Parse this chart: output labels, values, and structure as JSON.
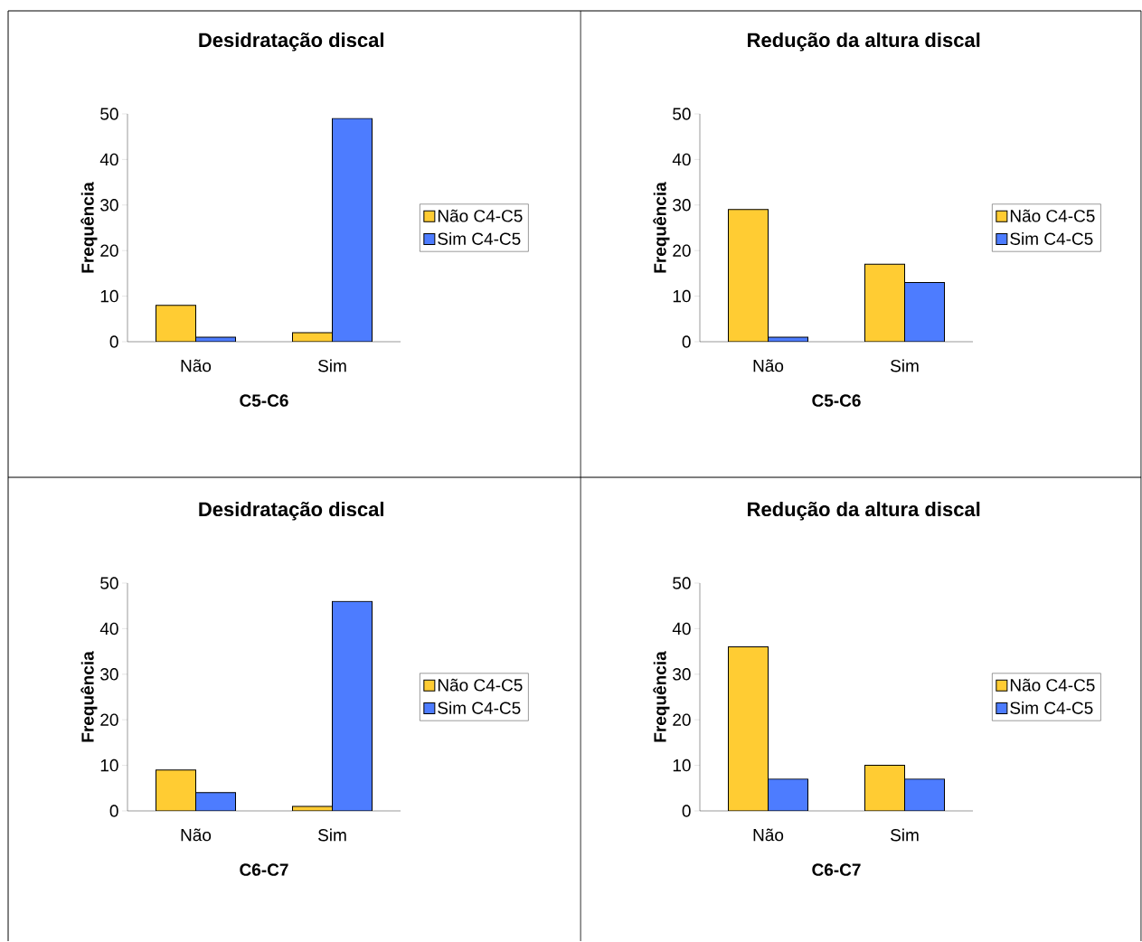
{
  "chart_data": [
    {
      "type": "bar",
      "title": "Desidratação discal",
      "xlabel": "C5-C6",
      "ylabel": "Frequência",
      "categories": [
        "Não",
        "Sim"
      ],
      "series": [
        {
          "name": "Não C4-C5",
          "color": "#ffcc33",
          "values": [
            8,
            2
          ]
        },
        {
          "name": "Sim C4-C5",
          "color": "#4d7cff",
          "values": [
            1,
            49
          ]
        }
      ],
      "ylim": [
        0,
        50
      ],
      "yticks": [
        0,
        10,
        20,
        30,
        40,
        50
      ],
      "legend": "right"
    },
    {
      "type": "bar",
      "title": "Redução da altura discal",
      "xlabel": "C5-C6",
      "ylabel": "Frequência",
      "categories": [
        "Não",
        "Sim"
      ],
      "series": [
        {
          "name": "Não C4-C5",
          "color": "#ffcc33",
          "values": [
            29,
            17
          ]
        },
        {
          "name": "Sim C4-C5",
          "color": "#4d7cff",
          "values": [
            1,
            13
          ]
        }
      ],
      "ylim": [
        0,
        50
      ],
      "yticks": [
        0,
        10,
        20,
        30,
        40,
        50
      ],
      "legend": "right"
    },
    {
      "type": "bar",
      "title": "Desidratação discal",
      "xlabel": "C6-C7",
      "ylabel": "Frequência",
      "categories": [
        "Não",
        "Sim"
      ],
      "series": [
        {
          "name": "Não C4-C5",
          "color": "#ffcc33",
          "values": [
            9,
            1
          ]
        },
        {
          "name": "Sim C4-C5",
          "color": "#4d7cff",
          "values": [
            4,
            46
          ]
        }
      ],
      "ylim": [
        0,
        50
      ],
      "yticks": [
        0,
        10,
        20,
        30,
        40,
        50
      ],
      "legend": "right"
    },
    {
      "type": "bar",
      "title": "Redução da altura discal",
      "xlabel": "C6-C7",
      "ylabel": "Frequência",
      "categories": [
        "Não",
        "Sim"
      ],
      "series": [
        {
          "name": "Não C4-C5",
          "color": "#ffcc33",
          "values": [
            36,
            10
          ]
        },
        {
          "name": "Sim C4-C5",
          "color": "#4d7cff",
          "values": [
            7,
            7
          ]
        }
      ],
      "ylim": [
        0,
        50
      ],
      "yticks": [
        0,
        10,
        20,
        30,
        40,
        50
      ],
      "legend": "right"
    }
  ]
}
